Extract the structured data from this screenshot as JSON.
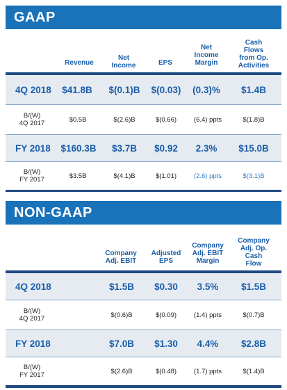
{
  "gaap": {
    "title": "GAAP",
    "columns": [
      "Revenue",
      "Net\nIncome",
      "EPS",
      "Net\nIncome\nMargin",
      "Cash\nFlows\nfrom Op.\nActivities"
    ],
    "q4": {
      "label": "4Q 2018",
      "values": [
        "$41.8B",
        "$(0.1)B",
        "$(0.03)",
        "(0.3)%",
        "$1.4B"
      ]
    },
    "q4_bw": {
      "label_line1": "B/(W)",
      "label_line2": "4Q 2017",
      "values": [
        "$0.5B",
        "$(2.6)B",
        "$(0.66)",
        "(6.4) ppts",
        "$(1.8)B"
      ]
    },
    "fy": {
      "label": "FY 2018",
      "values": [
        "$160.3B",
        "$3.7B",
        "$0.92",
        "2.3%",
        "$15.0B"
      ]
    },
    "fy_bw": {
      "label_line1": "B/(W)",
      "label_line2": "FY 2017",
      "values": [
        "$3.5B",
        "$(4.1)B",
        "$(1.01)",
        "(2.6) ppts",
        "$(3.1)B"
      ]
    }
  },
  "nongaap": {
    "title": "NON-GAAP",
    "columns": [
      "Company\nAdj. EBIT",
      "Adjusted\nEPS",
      "Company\nAdj. EBIT\nMargin",
      "Company\nAdj. Op.\nCash\nFlow"
    ],
    "q4": {
      "label": "4Q 2018",
      "values": [
        "$1.5B",
        "$0.30",
        "3.5%",
        "$1.5B"
      ]
    },
    "q4_bw": {
      "label_line1": "B/(W)",
      "label_line2": "4Q 2017",
      "values": [
        "$(0.6)B",
        "$(0.09)",
        "(1.4) ppts",
        "$(0.7)B"
      ]
    },
    "fy": {
      "label": "FY 2018",
      "values": [
        "$7.0B",
        "$1.30",
        "4.4%",
        "$2.8B"
      ]
    },
    "fy_bw": {
      "label_line1": "B/(W)",
      "label_line2": "FY 2017",
      "values": [
        "$(2.6)B",
        "$(0.48)",
        "(1.7) ppts",
        "$(1.4)B"
      ]
    }
  },
  "colors": {
    "header_bg": "#1a72b8",
    "accent_text": "#1a5ea8",
    "highlight_blue": "#2f7fc8",
    "row_bg": "#e6ebf2",
    "rule": "#1f4a82"
  }
}
